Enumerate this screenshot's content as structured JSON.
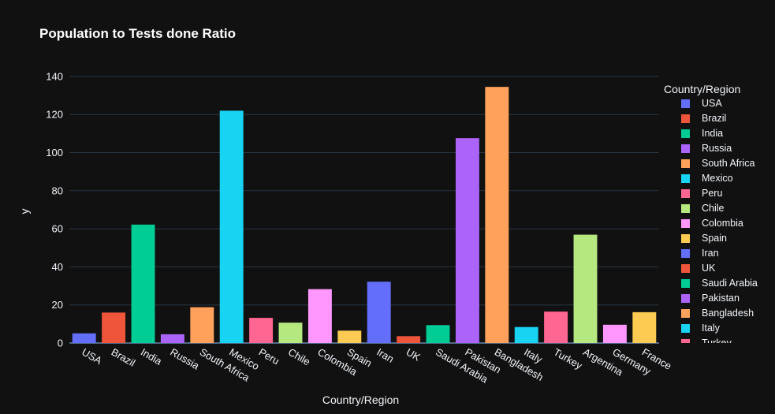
{
  "chart_data": {
    "type": "bar",
    "title": "Population to Tests done Ratio",
    "xlabel": "Country/Region",
    "ylabel": "y",
    "legend_title": "Country/Region",
    "legend_position": "right",
    "categories": [
      "USA",
      "Brazil",
      "India",
      "Russia",
      "South Africa",
      "Mexico",
      "Peru",
      "Chile",
      "Colombia",
      "Spain",
      "Iran",
      "UK",
      "Saudi Arabia",
      "Pakistan",
      "Bangladesh",
      "Italy",
      "Turkey",
      "Argentina",
      "Germany",
      "France"
    ],
    "values": [
      5.1,
      16.0,
      62.2,
      4.6,
      18.8,
      122.0,
      13.2,
      10.7,
      28.3,
      6.5,
      32.2,
      3.6,
      9.4,
      107.6,
      134.5,
      8.4,
      16.5,
      56.9,
      9.6,
      16.2
    ],
    "colors": [
      "#636efa",
      "#EF553B",
      "#00cc96",
      "#ab63fa",
      "#FFA15A",
      "#19d3f3",
      "#FF6692",
      "#B6E880",
      "#FF97FF",
      "#FECB52",
      "#636efa",
      "#EF553B",
      "#00cc96",
      "#ab63fa",
      "#FFA15A",
      "#19d3f3",
      "#FF6692",
      "#B6E880",
      "#FF97FF",
      "#FECB52"
    ],
    "yticks": [
      0,
      20,
      40,
      60,
      80,
      100,
      120,
      140
    ],
    "ylim": [
      0,
      147
    ],
    "grid": true
  }
}
